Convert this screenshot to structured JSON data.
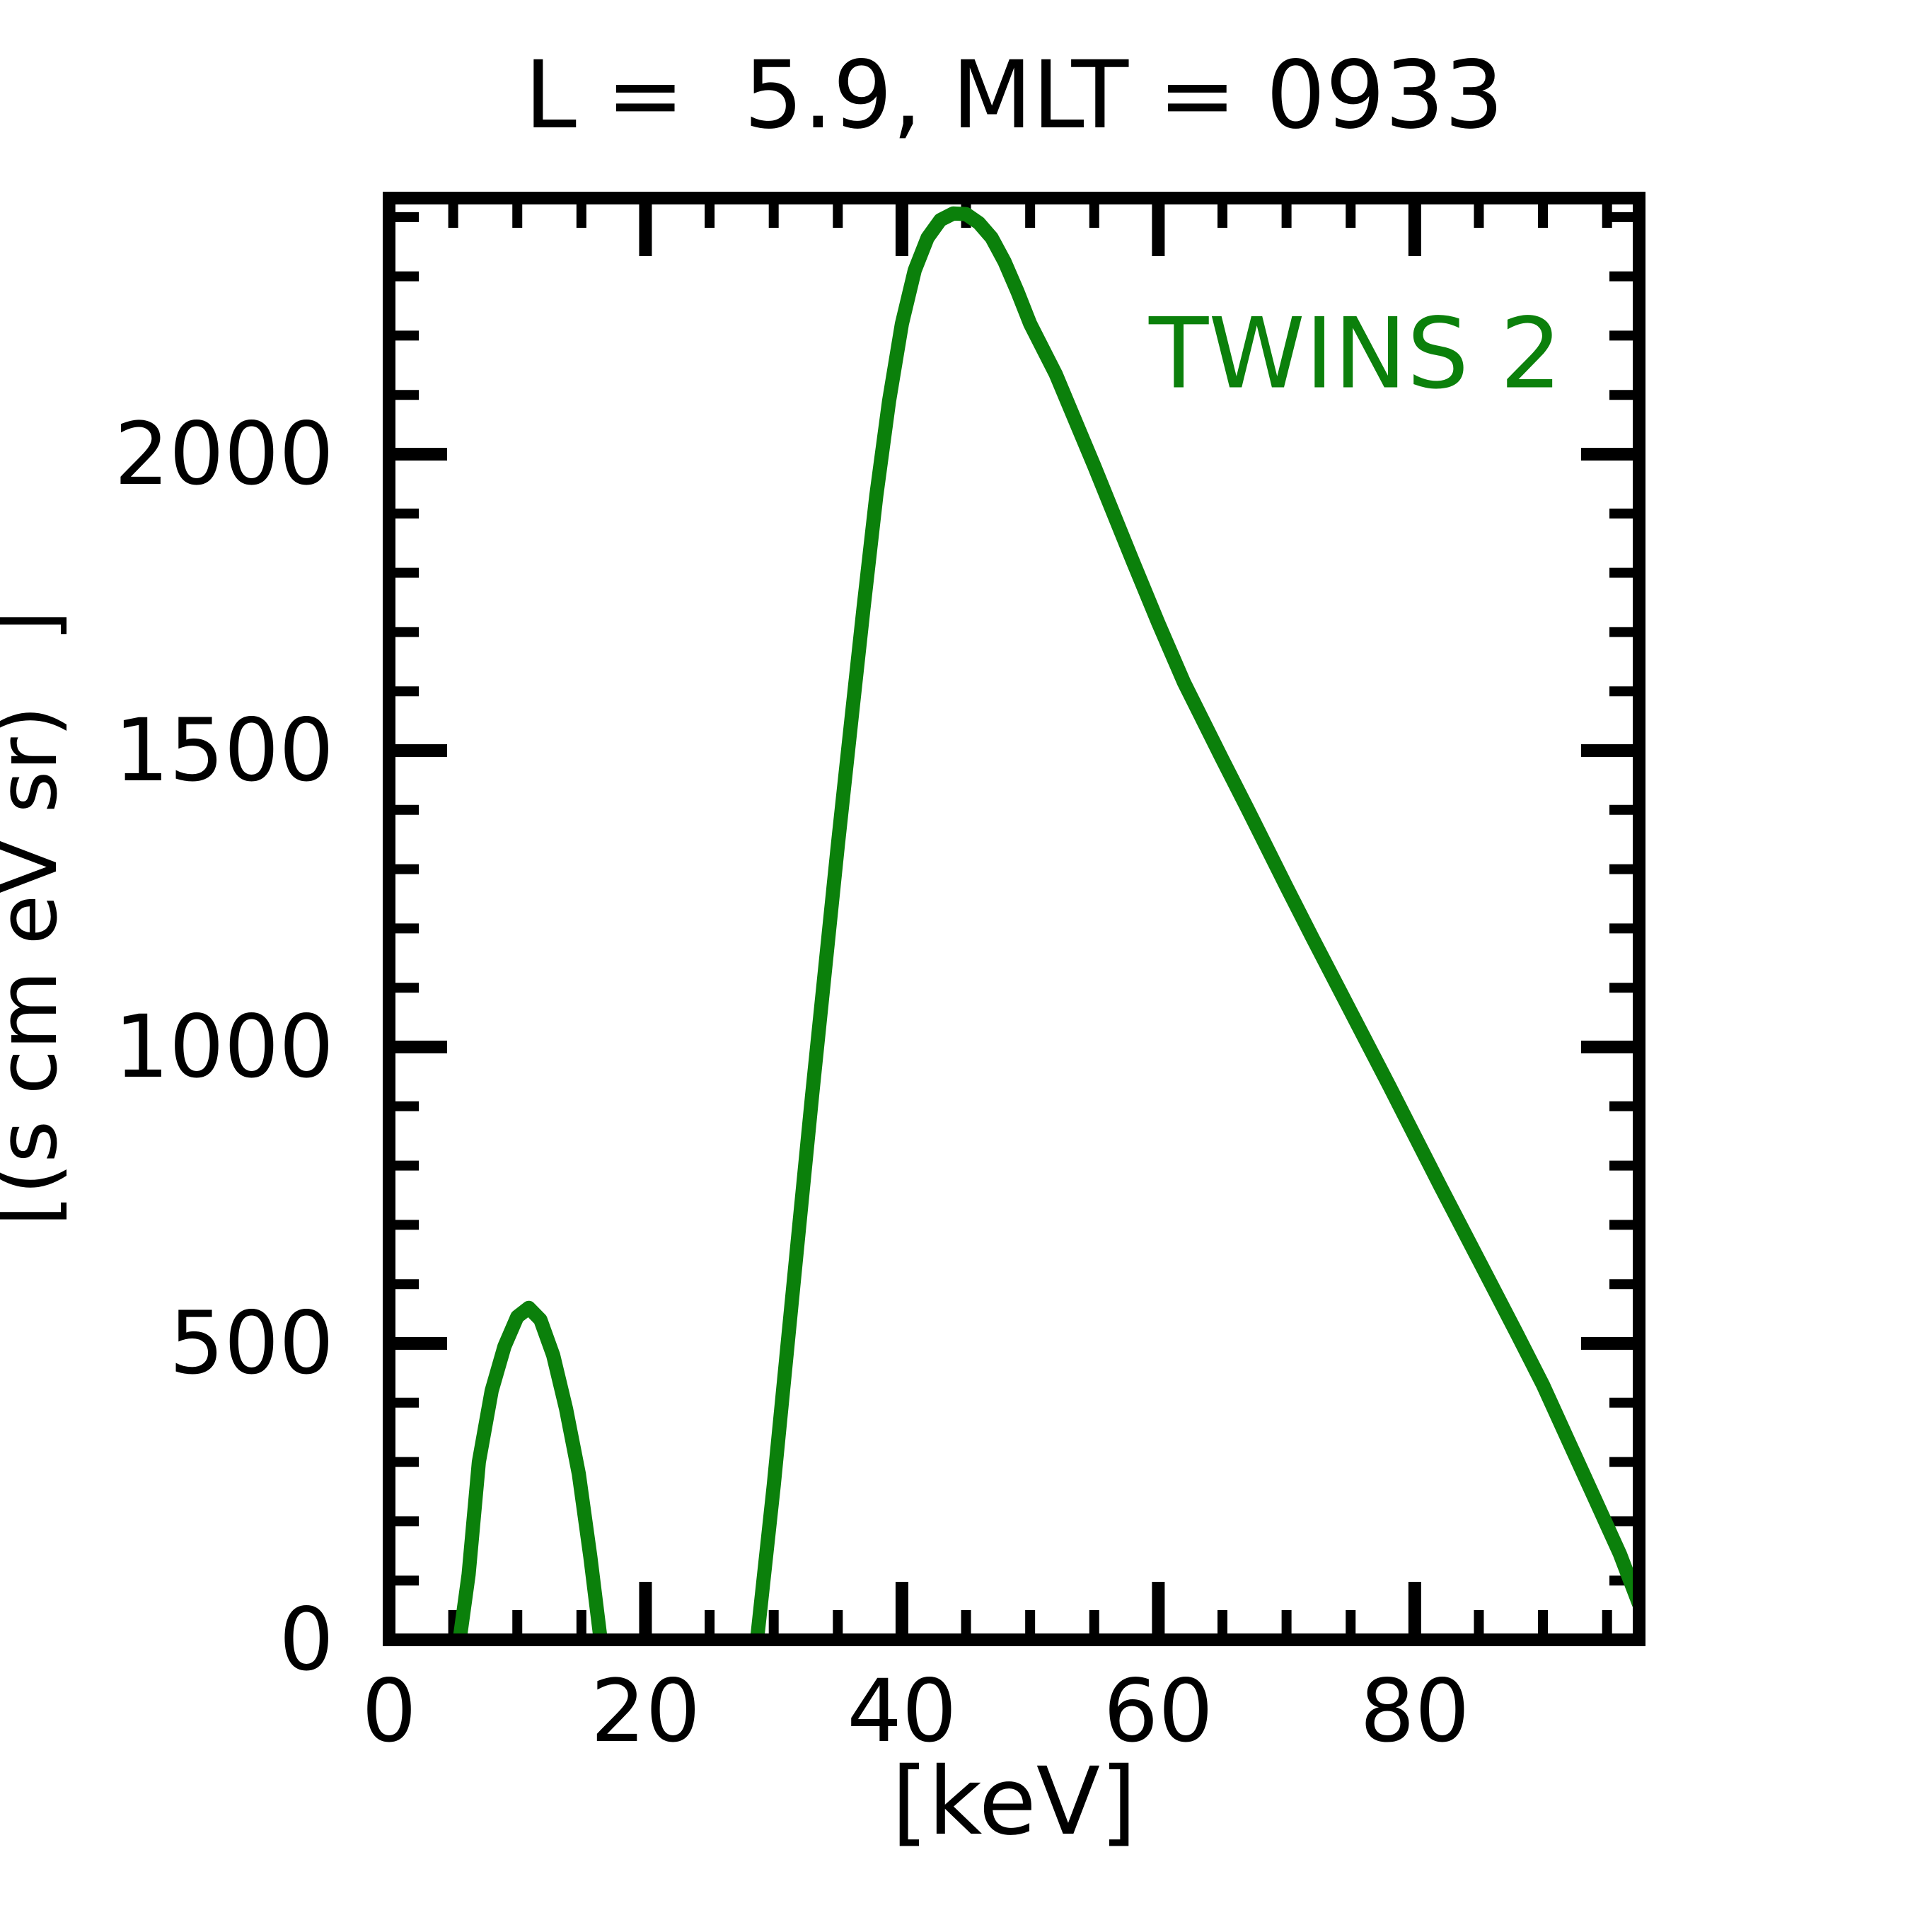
{
  "title": "L =  5.9, MLT = 0933",
  "legend": {
    "label": "TWINS 2"
  },
  "colors": {
    "line": "#0b800b",
    "legend_text": "#0b800b",
    "axis": "#000000",
    "background": "#ffffff"
  },
  "ylabel_display": {
    "prefix": "[(s cm eV sr)",
    "suffix": "]"
  },
  "chart_data": {
    "type": "line",
    "title": "L =  5.9, MLT = 0933",
    "xlabel": "[keV]",
    "ylabel": "[(s cm eV sr) ]",
    "xlim": [
      0,
      97.5
    ],
    "ylim": [
      0,
      2432
    ],
    "x_major_ticks": [
      0,
      20,
      40,
      60,
      80
    ],
    "y_major_ticks": [
      0,
      500,
      1000,
      1500,
      2000
    ],
    "x_minor_step": 5,
    "y_minor_step": 100,
    "grid": false,
    "legend_position": "upper right",
    "series": [
      {
        "name": "TWINS 2",
        "color": "#0b800b",
        "x": [
          5.5,
          6.2,
          7,
          8,
          9,
          10,
          10.9,
          11.8,
          12.8,
          13.8,
          14.8,
          15.7,
          16.5,
          17.5,
          22,
          27.6,
          28.7,
          30,
          31,
          32,
          33,
          34,
          35,
          36,
          37,
          38,
          39,
          40,
          41,
          42,
          43,
          44,
          45,
          46,
          47,
          48,
          49,
          50,
          52,
          55,
          58,
          60,
          62,
          63.5,
          65,
          67,
          70,
          72,
          75,
          78,
          80,
          82,
          85,
          88,
          90,
          92,
          94,
          96,
          97.5
        ],
        "y": [
          0,
          110,
          300,
          420,
          495,
          545,
          560,
          540,
          480,
          390,
          280,
          140,
          0,
          -150,
          -420,
          -150,
          0,
          260,
          480,
          700,
          920,
          1130,
          1340,
          1540,
          1740,
          1930,
          2090,
          2220,
          2310,
          2365,
          2395,
          2406,
          2405,
          2390,
          2365,
          2325,
          2275,
          2220,
          2135,
          1980,
          1820,
          1715,
          1615,
          1550,
          1485,
          1400,
          1270,
          1185,
          1060,
          935,
          850,
          765,
          640,
          515,
          430,
          335,
          240,
          145,
          60
        ]
      }
    ]
  }
}
